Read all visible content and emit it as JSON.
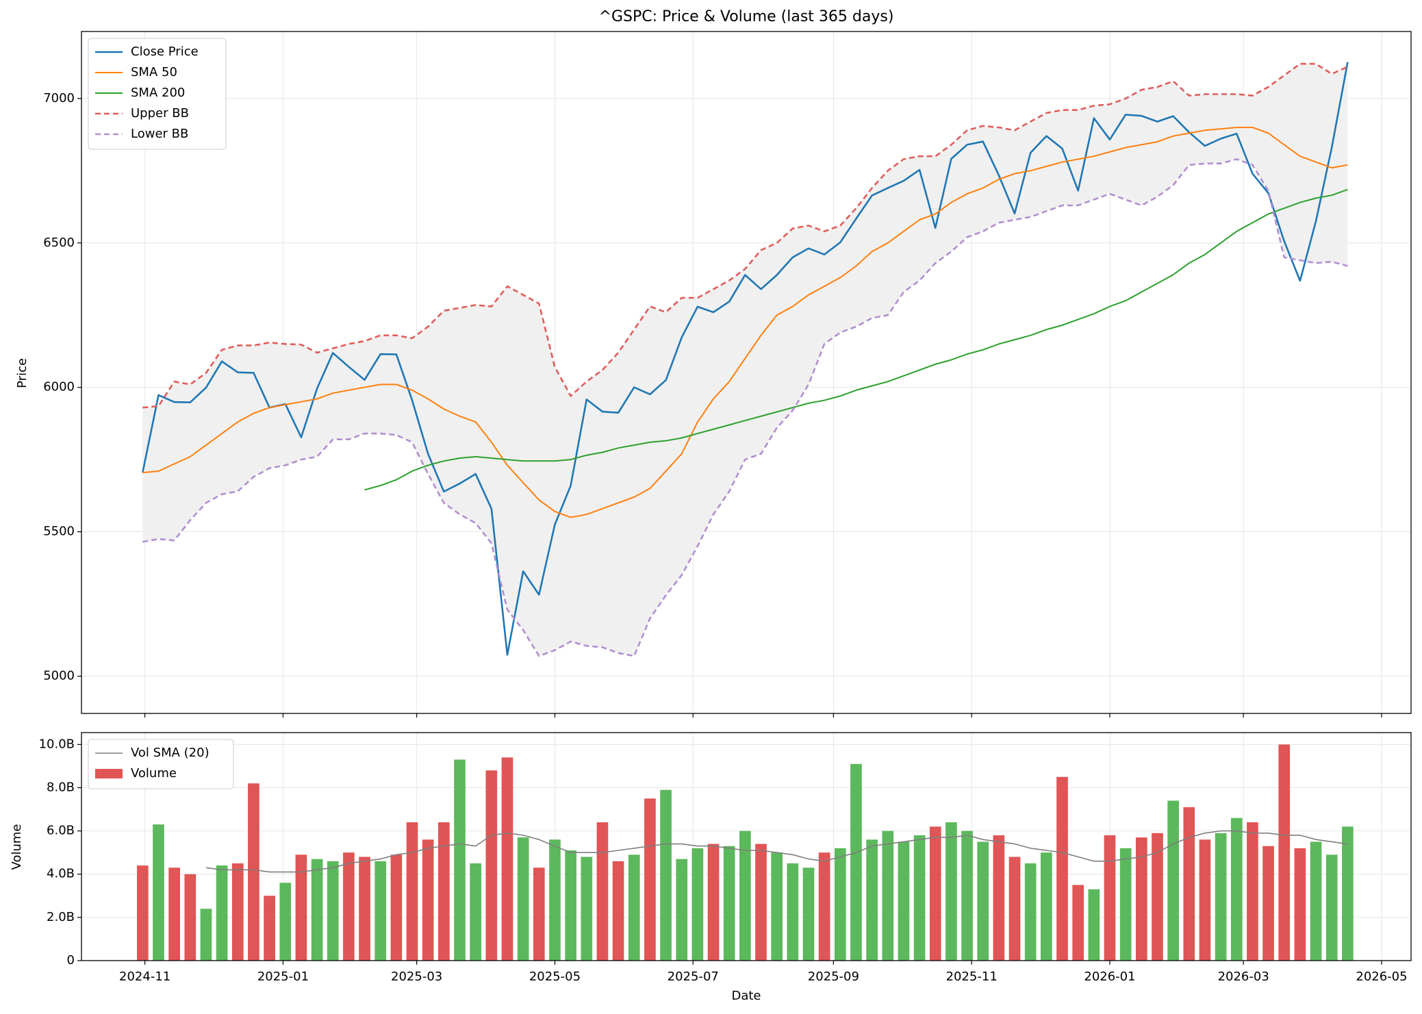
{
  "chart_data": [
    {
      "type": "line",
      "title": "^GSPC: Price & Volume  (last 365 days)",
      "ylabel": "Price",
      "xlim": [
        -28,
        559
      ],
      "ylim": [
        4871,
        7232
      ],
      "yticks": [
        5000,
        5500,
        6000,
        6500,
        7000
      ],
      "grid": true,
      "legend": "upper left",
      "band_color": "#f0f0f0",
      "x": [
        -1,
        6,
        13,
        20,
        27,
        34,
        41,
        48,
        55,
        62,
        69,
        76,
        83,
        90,
        97,
        104,
        111,
        118,
        125,
        132,
        139,
        146,
        153,
        160,
        167,
        174,
        181,
        188,
        195,
        202,
        209,
        216,
        223,
        230,
        237,
        244,
        251,
        258,
        265,
        272,
        279,
        286,
        293,
        300,
        307,
        314,
        321,
        328,
        335,
        342,
        349,
        356,
        363,
        370,
        377,
        384,
        391,
        398,
        405,
        412,
        419,
        426,
        433,
        440,
        447,
        454,
        461,
        468,
        475,
        482,
        489,
        496,
        503,
        510,
        517,
        524,
        531
      ],
      "series": [
        {
          "name": "Close Price",
          "color": "#1f77b4",
          "linestyle": "solid",
          "width": 2.6,
          "values": [
            5705,
            5973,
            5949,
            5948,
            5999,
            6090,
            6052,
            6050,
            5930,
            5942,
            5827,
            5996,
            6119,
            6071,
            6026,
            6115,
            6114,
            5955,
            5770,
            5639,
            5667,
            5700,
            5580,
            5074,
            5363,
            5282,
            5525,
            5660,
            5958,
            5916,
            5912,
            6000,
            5976,
            6025,
            6173,
            6279,
            6260,
            6297,
            6389,
            6340,
            6389,
            6450,
            6481,
            6460,
            6502,
            6584,
            6664,
            6690,
            6715,
            6753,
            6552,
            6791,
            6840,
            6851,
            6734,
            6602,
            6812,
            6870,
            6827,
            6681,
            6932,
            6858,
            6944,
            6940,
            6920,
            6939,
            6883,
            6836,
            6861,
            6878,
            6740,
            6672,
            6506,
            6369,
            6575,
            6830,
            7126
          ]
        },
        {
          "name": "SMA 50",
          "color": "#ff7f0e",
          "linestyle": "solid",
          "width": 2,
          "values": [
            5705,
            5710,
            5735,
            5760,
            5800,
            5840,
            5880,
            5910,
            5930,
            5940,
            5950,
            5960,
            5980,
            5990,
            6000,
            6010,
            6010,
            5990,
            5960,
            5925,
            5900,
            5880,
            5810,
            5730,
            5670,
            5610,
            5570,
            5550,
            5560,
            5580,
            5600,
            5620,
            5650,
            5710,
            5770,
            5880,
            5960,
            6020,
            6100,
            6180,
            6250,
            6280,
            6320,
            6350,
            6380,
            6420,
            6470,
            6500,
            6540,
            6580,
            6600,
            6640,
            6670,
            6690,
            6720,
            6740,
            6750,
            6765,
            6780,
            6790,
            6800,
            6815,
            6830,
            6840,
            6850,
            6870,
            6880,
            6890,
            6895,
            6900,
            6900,
            6880,
            6840,
            6800,
            6780,
            6760,
            6770
          ]
        },
        {
          "name": "SMA 200",
          "color": "#2ca02c",
          "linestyle": "solid",
          "width": 2,
          "values": [
            null,
            null,
            null,
            null,
            null,
            null,
            null,
            null,
            null,
            null,
            null,
            null,
            null,
            null,
            5645,
            5660,
            5680,
            5710,
            5730,
            5745,
            5755,
            5760,
            5755,
            5750,
            5745,
            5745,
            5745,
            5750,
            5765,
            5775,
            5790,
            5800,
            5810,
            5815,
            5825,
            5840,
            5855,
            5870,
            5885,
            5900,
            5915,
            5930,
            5945,
            5955,
            5970,
            5990,
            6005,
            6020,
            6040,
            6060,
            6080,
            6095,
            6115,
            6130,
            6150,
            6165,
            6180,
            6200,
            6215,
            6235,
            6255,
            6280,
            6300,
            6330,
            6360,
            6390,
            6430,
            6460,
            6500,
            6540,
            6570,
            6600,
            6620,
            6640,
            6655,
            6665,
            6685
          ]
        },
        {
          "name": "Upper BB",
          "color": "#e05c5c",
          "linestyle": "dashed",
          "width": 2.6,
          "values": [
            5930,
            5935,
            6020,
            6010,
            6050,
            6130,
            6145,
            6145,
            6155,
            6150,
            6148,
            6120,
            6135,
            6150,
            6160,
            6180,
            6180,
            6170,
            6210,
            6265,
            6275,
            6285,
            6280,
            6350,
            6320,
            6290,
            6070,
            5970,
            6020,
            6060,
            6120,
            6200,
            6280,
            6260,
            6310,
            6310,
            6340,
            6370,
            6410,
            6475,
            6500,
            6550,
            6560,
            6540,
            6560,
            6620,
            6690,
            6750,
            6790,
            6800,
            6800,
            6840,
            6890,
            6905,
            6900,
            6890,
            6920,
            6950,
            6960,
            6960,
            6975,
            6980,
            7000,
            7030,
            7040,
            7060,
            7010,
            7015,
            7015,
            7015,
            7010,
            7040,
            7080,
            7120,
            7120,
            7085,
            7110
          ]
        },
        {
          "name": "Lower BB",
          "color": "#b08fd0",
          "linestyle": "dashed",
          "width": 2.6,
          "values": [
            5465,
            5475,
            5470,
            5540,
            5600,
            5630,
            5640,
            5690,
            5720,
            5730,
            5750,
            5760,
            5820,
            5820,
            5840,
            5840,
            5835,
            5810,
            5700,
            5600,
            5560,
            5530,
            5460,
            5230,
            5160,
            5070,
            5090,
            5120,
            5105,
            5100,
            5080,
            5070,
            5200,
            5280,
            5350,
            5450,
            5560,
            5640,
            5750,
            5770,
            5860,
            5920,
            6010,
            6150,
            6190,
            6210,
            6240,
            6250,
            6330,
            6370,
            6430,
            6470,
            6520,
            6540,
            6570,
            6580,
            6590,
            6610,
            6630,
            6630,
            6650,
            6670,
            6650,
            6630,
            6660,
            6700,
            6770,
            6775,
            6775,
            6790,
            6770,
            6680,
            6450,
            6440,
            6430,
            6435,
            6420
          ]
        }
      ]
    },
    {
      "type": "bar",
      "ylabel": "Volume",
      "xlabel": "Date",
      "xlim": [
        -28,
        559
      ],
      "ylim": [
        0,
        10550000000
      ],
      "grid": true,
      "legend": "upper left",
      "up_color": "#5cb85c",
      "down_color": "#e05555",
      "yticks": [
        0,
        {
          "value": 2000000000,
          "label": "2.0B"
        },
        {
          "value": 4000000000,
          "label": "4.0B"
        },
        {
          "value": 6000000000,
          "label": "6.0B"
        },
        {
          "value": 8000000000,
          "label": "8.0B"
        },
        {
          "value": 10000000000,
          "label": "10.0B"
        }
      ],
      "xticks": [
        {
          "value": 0,
          "label": "2024-11"
        },
        {
          "value": 61,
          "label": "2025-01"
        },
        {
          "value": 120,
          "label": "2025-03"
        },
        {
          "value": 181,
          "label": "2025-05"
        },
        {
          "value": 242,
          "label": "2025-07"
        },
        {
          "value": 304,
          "label": "2025-09"
        },
        {
          "value": 365,
          "label": "2025-11"
        },
        {
          "value": 426,
          "label": "2026-01"
        },
        {
          "value": 485,
          "label": "2026-03"
        },
        {
          "value": 546,
          "label": "2026-05"
        }
      ],
      "x": [
        -1,
        6,
        13,
        20,
        27,
        34,
        41,
        48,
        55,
        62,
        69,
        76,
        83,
        90,
        97,
        104,
        111,
        118,
        125,
        132,
        139,
        146,
        153,
        160,
        167,
        174,
        181,
        188,
        195,
        202,
        209,
        216,
        223,
        230,
        237,
        244,
        251,
        258,
        265,
        272,
        279,
        286,
        293,
        300,
        307,
        314,
        321,
        328,
        335,
        342,
        349,
        356,
        363,
        370,
        377,
        384,
        391,
        398,
        405,
        412,
        419,
        426,
        433,
        440,
        447,
        454,
        461,
        468,
        475,
        482,
        489,
        496,
        503,
        510,
        517,
        524,
        531
      ],
      "series": [
        {
          "name": "Vol SMA (20)",
          "type": "line",
          "color": "#7f7f7f",
          "linestyle": "solid",
          "width": 1.6,
          "values": [
            null,
            null,
            null,
            null,
            4300000000.0,
            4200000000.0,
            4200000000.0,
            4200000000.0,
            4100000000.0,
            4100000000.0,
            4100000000.0,
            4200000000.0,
            4300000000.0,
            4500000000.0,
            4600000000.0,
            4700000000.0,
            4900000000.0,
            5000000000.0,
            5200000000.0,
            5300000000.0,
            5400000000.0,
            5300000000.0,
            5800000000.0,
            5900000000.0,
            5800000000.0,
            5600000000.0,
            5300000000.0,
            5000000000.0,
            5000000000.0,
            5000000000.0,
            5100000000.0,
            5200000000.0,
            5300000000.0,
            5400000000.0,
            5400000000.0,
            5300000000.0,
            5300000000.0,
            5200000000.0,
            5100000000.0,
            5100000000.0,
            5000000000.0,
            4900000000.0,
            4700000000.0,
            4600000000.0,
            4800000000.0,
            5000000000.0,
            5300000000.0,
            5400000000.0,
            5500000000.0,
            5600000000.0,
            5700000000.0,
            5700000000.0,
            5800000000.0,
            5600000000.0,
            5500000000.0,
            5400000000.0,
            5200000000.0,
            5100000000.0,
            5000000000.0,
            4800000000.0,
            4600000000.0,
            4600000000.0,
            4700000000.0,
            4800000000.0,
            5000000000.0,
            5400000000.0,
            5700000000.0,
            5900000000.0,
            6000000000.0,
            6000000000.0,
            5900000000.0,
            5900000000.0,
            5800000000.0,
            5800000000.0,
            5600000000.0,
            5500000000.0,
            5400000000.0
          ]
        },
        {
          "name": "Volume",
          "type": "bar",
          "color": "#e05555",
          "values": [
            4400000000.0,
            6300000000.0,
            4300000000.0,
            4000000000.0,
            2400000000.0,
            4400000000.0,
            4500000000.0,
            8200000000.0,
            3000000000.0,
            3600000000.0,
            4900000000.0,
            4700000000.0,
            4600000000.0,
            5000000000.0,
            4800000000.0,
            4600000000.0,
            4900000000.0,
            6400000000.0,
            5600000000.0,
            6400000000.0,
            9300000000.0,
            4500000000.0,
            8800000000.0,
            9400000000.0,
            5700000000.0,
            4300000000.0,
            5600000000.0,
            5100000000.0,
            4800000000.0,
            6400000000.0,
            4600000000.0,
            4900000000.0,
            7500000000.0,
            7900000000.0,
            4700000000.0,
            5200000000.0,
            5400000000.0,
            5300000000.0,
            6000000000.0,
            5400000000.0,
            5000000000.0,
            4500000000.0,
            4300000000.0,
            5000000000.0,
            5200000000.0,
            9100000000.0,
            5600000000.0,
            6000000000.0,
            5500000000.0,
            5800000000.0,
            6200000000.0,
            6400000000.0,
            6000000000.0,
            5500000000.0,
            5800000000.0,
            4800000000.0,
            4500000000.0,
            5000000000.0,
            8500000000.0,
            3500000000.0,
            3300000000.0,
            5800000000.0,
            5200000000.0,
            5700000000.0,
            5900000000.0,
            7400000000.0,
            7100000000.0,
            5600000000.0,
            5900000000.0,
            6600000000.0,
            6400000000.0,
            5300000000.0,
            10000000000.0,
            5200000000.0,
            5500000000.0,
            4900000000.0,
            6200000000.0
          ]
        }
      ]
    }
  ]
}
